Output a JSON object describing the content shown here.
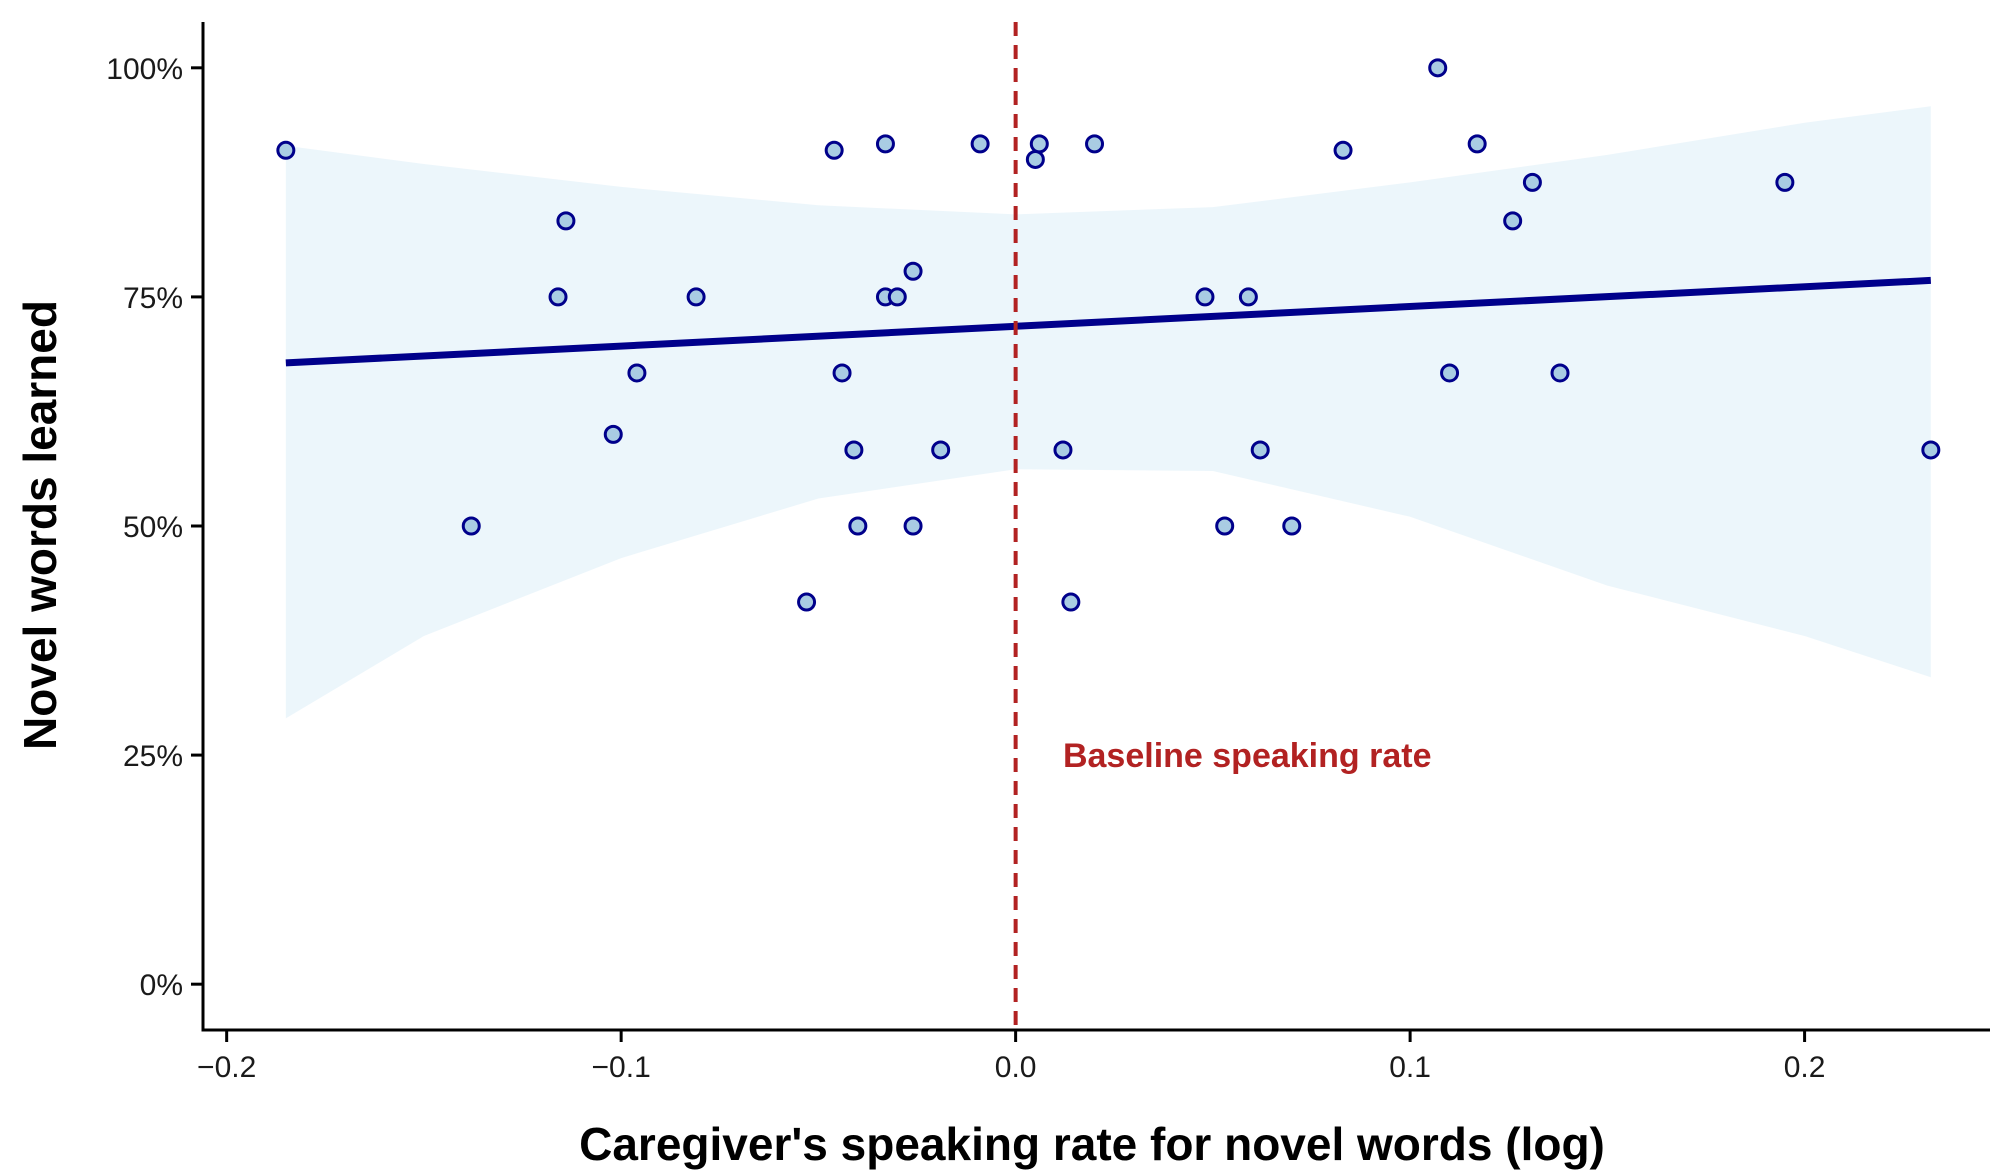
{
  "colors": {
    "background": "#ffffff",
    "axis": "#000000",
    "band": "#ddeef8",
    "trend": "#00008b",
    "point_fill": "#a9cce3",
    "point_stroke": "#00008b",
    "baseline": "#b22222"
  },
  "chart_data": {
    "type": "scatter",
    "title": "",
    "xlabel": "Caregiver's speaking rate for novel words (log)",
    "ylabel": "Novel words learned",
    "xlim": [
      -0.206,
      0.247
    ],
    "ylim": [
      -0.05,
      1.05
    ],
    "x_ticks": [
      -0.2,
      -0.1,
      0.0,
      0.1,
      0.2
    ],
    "x_tick_labels": [
      "−0.2",
      "−0.1",
      "0.0",
      "0.1",
      "0.2"
    ],
    "y_ticks": [
      0,
      0.25,
      0.5,
      0.75,
      1.0
    ],
    "y_tick_labels": [
      "0%",
      "25%",
      "50%",
      "75%",
      "100%"
    ],
    "grid": false,
    "legend": "none",
    "points": [
      {
        "x": -0.185,
        "y": 0.91
      },
      {
        "x": -0.138,
        "y": 0.5
      },
      {
        "x": -0.116,
        "y": 0.75
      },
      {
        "x": -0.114,
        "y": 0.833
      },
      {
        "x": -0.102,
        "y": 0.6
      },
      {
        "x": -0.096,
        "y": 0.667
      },
      {
        "x": -0.081,
        "y": 0.75
      },
      {
        "x": -0.053,
        "y": 0.417
      },
      {
        "x": -0.046,
        "y": 0.91
      },
      {
        "x": -0.044,
        "y": 0.667
      },
      {
        "x": -0.041,
        "y": 0.583
      },
      {
        "x": -0.04,
        "y": 0.5
      },
      {
        "x": -0.033,
        "y": 0.917
      },
      {
        "x": -0.033,
        "y": 0.75
      },
      {
        "x": -0.03,
        "y": 0.75
      },
      {
        "x": -0.026,
        "y": 0.778
      },
      {
        "x": -0.026,
        "y": 0.5
      },
      {
        "x": -0.019,
        "y": 0.583
      },
      {
        "x": -0.009,
        "y": 0.917
      },
      {
        "x": 0.005,
        "y": 0.9
      },
      {
        "x": 0.006,
        "y": 0.917
      },
      {
        "x": 0.012,
        "y": 0.583
      },
      {
        "x": 0.014,
        "y": 0.417
      },
      {
        "x": 0.02,
        "y": 0.917
      },
      {
        "x": 0.048,
        "y": 0.75
      },
      {
        "x": 0.053,
        "y": 0.5
      },
      {
        "x": 0.059,
        "y": 0.75
      },
      {
        "x": 0.062,
        "y": 0.583
      },
      {
        "x": 0.07,
        "y": 0.5
      },
      {
        "x": 0.083,
        "y": 0.91
      },
      {
        "x": 0.107,
        "y": 1.0
      },
      {
        "x": 0.11,
        "y": 0.667
      },
      {
        "x": 0.117,
        "y": 0.917
      },
      {
        "x": 0.126,
        "y": 0.833
      },
      {
        "x": 0.131,
        "y": 0.875
      },
      {
        "x": 0.138,
        "y": 0.667
      },
      {
        "x": 0.195,
        "y": 0.875
      },
      {
        "x": 0.232,
        "y": 0.583
      }
    ],
    "trend_line": {
      "x": [
        -0.185,
        0.232
      ],
      "y": [
        0.678,
        0.768
      ]
    },
    "confidence_band": {
      "x": [
        -0.185,
        -0.15,
        -0.1,
        -0.05,
        0.0,
        0.05,
        0.1,
        0.15,
        0.2,
        0.232
      ],
      "upper": [
        0.915,
        0.895,
        0.87,
        0.85,
        0.84,
        0.848,
        0.875,
        0.905,
        0.94,
        0.958
      ],
      "lower": [
        0.29,
        0.38,
        0.465,
        0.53,
        0.562,
        0.56,
        0.51,
        0.435,
        0.38,
        0.335
      ]
    },
    "reference_line": {
      "x": 0.0,
      "style": "dashed"
    },
    "annotations": [
      {
        "text": "Baseline speaking rate",
        "x": 0.012,
        "y": 0.25
      }
    ]
  }
}
